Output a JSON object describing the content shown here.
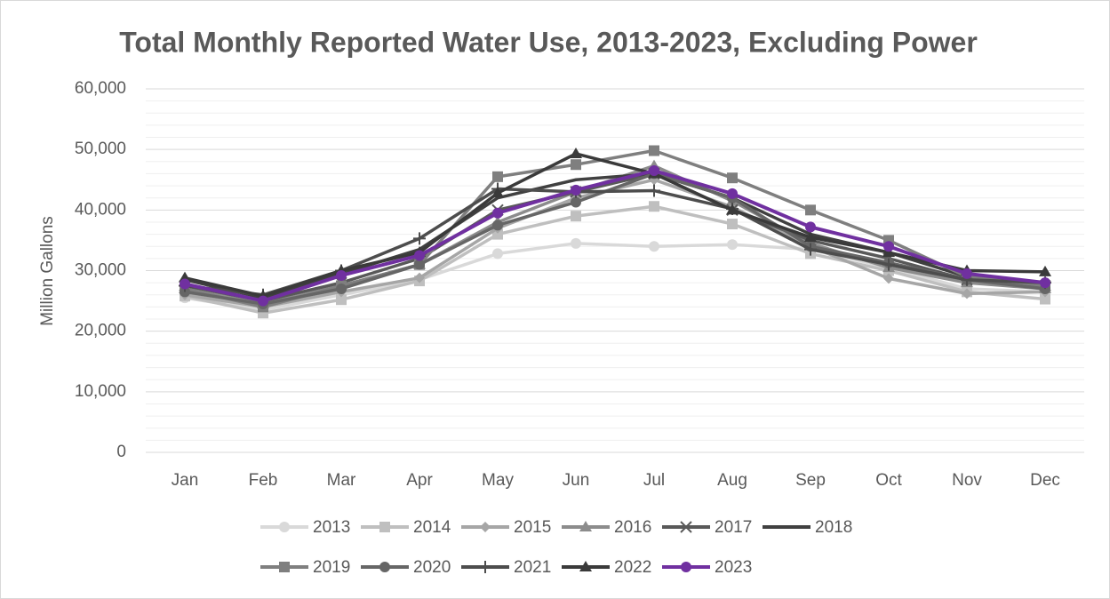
{
  "chart_data": {
    "type": "line",
    "title": "Total Monthly Reported Water Use, 2013-2023, Excluding Power",
    "y_label": "Million Gallons",
    "categories": [
      "Jan",
      "Feb",
      "Mar",
      "Apr",
      "May",
      "Jun",
      "Jul",
      "Aug",
      "Sep",
      "Oct",
      "Nov",
      "Dec"
    ],
    "ylim": [
      0,
      60000
    ],
    "yticks": [
      0,
      {
        "value": 10000,
        "label": "10,000"
      },
      {
        "value": 20000,
        "label": "20,000"
      },
      {
        "value": 30000,
        "label": "30,000"
      },
      {
        "value": 40000,
        "label": "40,000"
      },
      {
        "value": 50000,
        "label": "50,000"
      },
      {
        "value": 60000,
        "label": "60,000"
      }
    ],
    "yminorticks": [
      2000,
      4000,
      6000,
      8000,
      12000,
      14000,
      16000,
      18000,
      22000,
      24000,
      26000,
      28000,
      32000,
      34000,
      36000,
      38000,
      42000,
      44000,
      46000,
      48000,
      52000,
      54000,
      56000,
      58000
    ],
    "grid": true,
    "legend": "bottom",
    "series": [
      {
        "name": "2013",
        "color": "#d9d9d9",
        "marker": "circle",
        "values": [
          25500,
          23500,
          26000,
          28500,
          32800,
          34500,
          34000,
          34300,
          33500,
          30500,
          27000,
          26500
        ]
      },
      {
        "name": "2014",
        "color": "#bfbfbf",
        "marker": "square",
        "values": [
          25800,
          23000,
          25200,
          28300,
          36000,
          39000,
          40600,
          37700,
          32800,
          30000,
          26500,
          25300
        ]
      },
      {
        "name": "2015",
        "color": "#a6a6a6",
        "marker": "diamond",
        "values": [
          26000,
          24000,
          26500,
          28800,
          37000,
          42000,
          45000,
          40500,
          34000,
          28700,
          26200,
          26500
        ]
      },
      {
        "name": "2016",
        "color": "#8c8c8c",
        "marker": "triangle",
        "values": [
          27000,
          24500,
          27500,
          31000,
          38000,
          43000,
          47300,
          41500,
          34500,
          30500,
          28000,
          27000
        ]
      },
      {
        "name": "2017",
        "color": "#595959",
        "marker": "x",
        "values": [
          27500,
          25000,
          28000,
          32000,
          40000,
          43000,
          46000,
          40000,
          35000,
          32000,
          28500,
          27500
        ]
      },
      {
        "name": "2018",
        "color": "#404040",
        "marker": "none",
        "values": [
          28500,
          25500,
          29500,
          33500,
          42000,
          45000,
          46000,
          42000,
          36000,
          33000,
          29000,
          28000
        ]
      },
      {
        "name": "2019",
        "color": "#7f7f7f",
        "marker": "square",
        "values": [
          27000,
          24000,
          27500,
          31000,
          45500,
          47500,
          49800,
          45300,
          40000,
          35000,
          29000,
          27500
        ]
      },
      {
        "name": "2020",
        "color": "#666666",
        "marker": "circle",
        "values": [
          26500,
          24500,
          27000,
          31000,
          37500,
          41300,
          46000,
          42000,
          34000,
          31300,
          28500,
          27000
        ]
      },
      {
        "name": "2021",
        "color": "#4d4d4d",
        "marker": "plus",
        "values": [
          27500,
          26000,
          30000,
          35300,
          43500,
          43000,
          43200,
          40200,
          33500,
          31000,
          28500,
          28000
        ]
      },
      {
        "name": "2022",
        "color": "#3a3a3a",
        "marker": "triangle",
        "values": [
          28800,
          25800,
          30000,
          33000,
          42800,
          49300,
          46000,
          40000,
          35500,
          33000,
          30000,
          29800
        ]
      },
      {
        "name": "2023",
        "color": "#7030a0",
        "marker": "circle",
        "values": [
          27800,
          25000,
          29200,
          32500,
          39500,
          43300,
          46500,
          42700,
          37200,
          34000,
          29500,
          28000
        ]
      }
    ]
  }
}
